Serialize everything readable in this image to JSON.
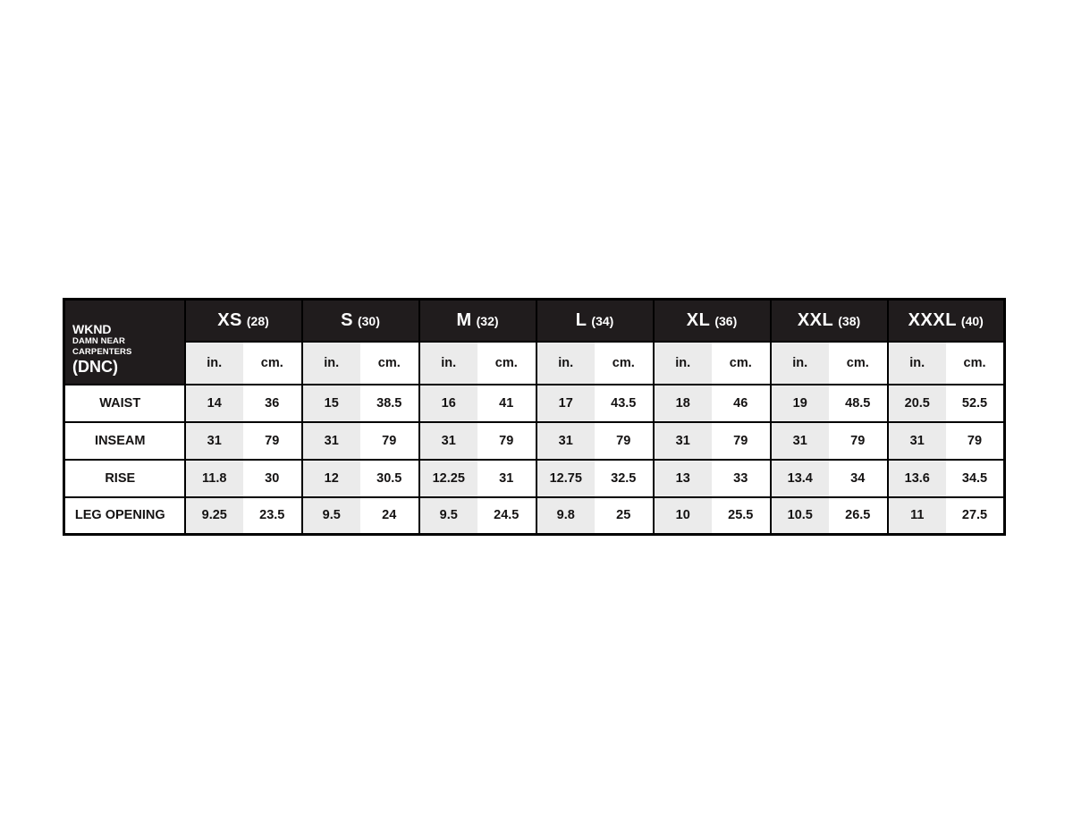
{
  "page": {
    "background": "#ffffff"
  },
  "table": {
    "title": {
      "brand": "WKND",
      "subtitle": "DAMN NEAR CARPENTERS",
      "abbr": "(DNC)"
    },
    "colors": {
      "header_bg": "#201c1d",
      "header_text": "#ffffff",
      "in_column_bg": "#ebebeb",
      "cm_column_bg": "#ffffff",
      "border": "#000000"
    },
    "unit_labels": {
      "in": "in.",
      "cm": "cm."
    },
    "sizes": [
      {
        "label": "XS",
        "number": "(28)"
      },
      {
        "label": "S",
        "number": "(30)"
      },
      {
        "label": "M",
        "number": "(32)"
      },
      {
        "label": "L",
        "number": "(34)"
      },
      {
        "label": "XL",
        "number": "(36)"
      },
      {
        "label": "XXL",
        "number": "(38)"
      },
      {
        "label": "XXXL",
        "number": "(40)"
      }
    ],
    "rows": [
      {
        "label": "WAIST",
        "values": [
          [
            "14",
            "36"
          ],
          [
            "15",
            "38.5"
          ],
          [
            "16",
            "41"
          ],
          [
            "17",
            "43.5"
          ],
          [
            "18",
            "46"
          ],
          [
            "19",
            "48.5"
          ],
          [
            "20.5",
            "52.5"
          ]
        ]
      },
      {
        "label": "INSEAM",
        "values": [
          [
            "31",
            "79"
          ],
          [
            "31",
            "79"
          ],
          [
            "31",
            "79"
          ],
          [
            "31",
            "79"
          ],
          [
            "31",
            "79"
          ],
          [
            "31",
            "79"
          ],
          [
            "31",
            "79"
          ]
        ]
      },
      {
        "label": "RISE",
        "values": [
          [
            "11.8",
            "30"
          ],
          [
            "12",
            "30.5"
          ],
          [
            "12.25",
            "31"
          ],
          [
            "12.75",
            "32.5"
          ],
          [
            "13",
            "33"
          ],
          [
            "13.4",
            "34"
          ],
          [
            "13.6",
            "34.5"
          ]
        ]
      },
      {
        "label": "LEG OPENING",
        "values": [
          [
            "9.25",
            "23.5"
          ],
          [
            "9.5",
            "24"
          ],
          [
            "9.5",
            "24.5"
          ],
          [
            "9.8",
            "25"
          ],
          [
            "10",
            "25.5"
          ],
          [
            "10.5",
            "26.5"
          ],
          [
            "11",
            "27.5"
          ]
        ]
      }
    ]
  },
  "chart_data": {
    "type": "table",
    "title": "WKND DAMN NEAR CARPENTERS (DNC)",
    "column_groups": [
      "XS (28)",
      "S (30)",
      "M (32)",
      "L (34)",
      "XL (36)",
      "XXL (38)",
      "XXXL (40)"
    ],
    "sub_columns": [
      "in.",
      "cm."
    ],
    "row_labels": [
      "WAIST",
      "INSEAM",
      "RISE",
      "LEG OPENING"
    ],
    "rows": [
      [
        14,
        36,
        15,
        38.5,
        16,
        41,
        17,
        43.5,
        18,
        46,
        19,
        48.5,
        20.5,
        52.5
      ],
      [
        31,
        79,
        31,
        79,
        31,
        79,
        31,
        79,
        31,
        79,
        31,
        79,
        31,
        79
      ],
      [
        11.8,
        30,
        12,
        30.5,
        12.25,
        31,
        12.75,
        32.5,
        13,
        33,
        13.4,
        34,
        13.6,
        34.5
      ],
      [
        9.25,
        23.5,
        9.5,
        24,
        9.5,
        24.5,
        9.8,
        25,
        10,
        25.5,
        10.5,
        26.5,
        11,
        27.5
      ]
    ]
  }
}
